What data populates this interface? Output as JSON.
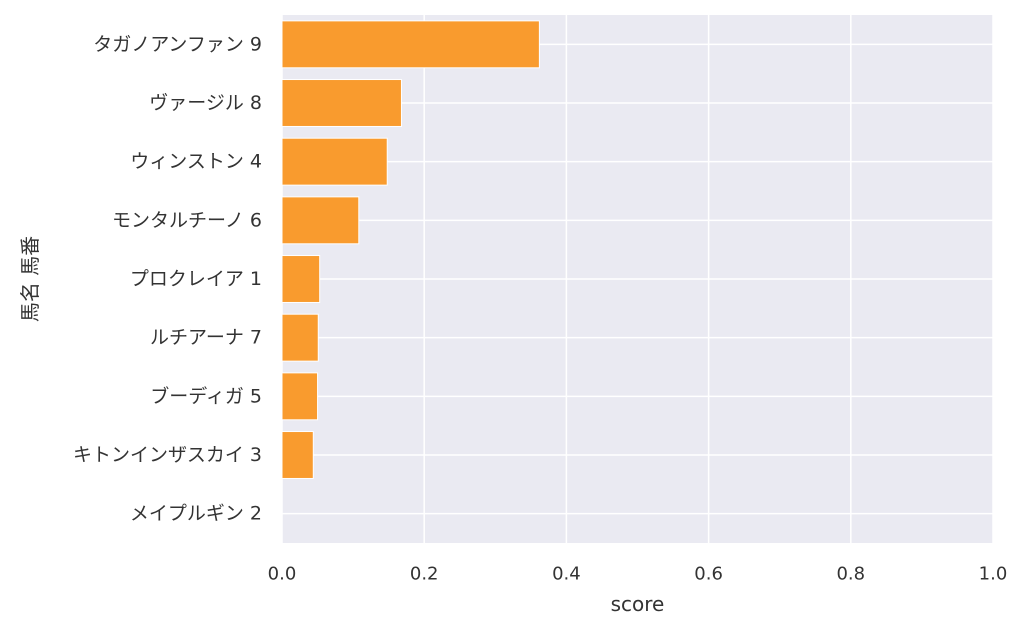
{
  "chart_data": {
    "type": "bar",
    "orientation": "horizontal",
    "categories": [
      "タガノアンファン 9",
      "ヴァージル 8",
      "ウィンストン 4",
      "モンタルチーノ 6",
      "プロクレイア 1",
      "ルチアーナ 7",
      "ブーディガ 5",
      "キトンインザスカイ 3",
      "メイプルギン 2"
    ],
    "values": [
      0.362,
      0.168,
      0.148,
      0.108,
      0.053,
      0.051,
      0.05,
      0.044,
      0.0
    ],
    "xlabel": "score",
    "ylabel": "馬名 馬番",
    "xlim": [
      0.0,
      1.0
    ],
    "xticks": [
      "0.0",
      "0.2",
      "0.4",
      "0.6",
      "0.8",
      "1.0"
    ],
    "grid": true,
    "colors": {
      "bar": "#f99b2e",
      "bar_edge": "#ffffff",
      "background": "#eaeaf2",
      "grid": "#ffffff"
    }
  }
}
